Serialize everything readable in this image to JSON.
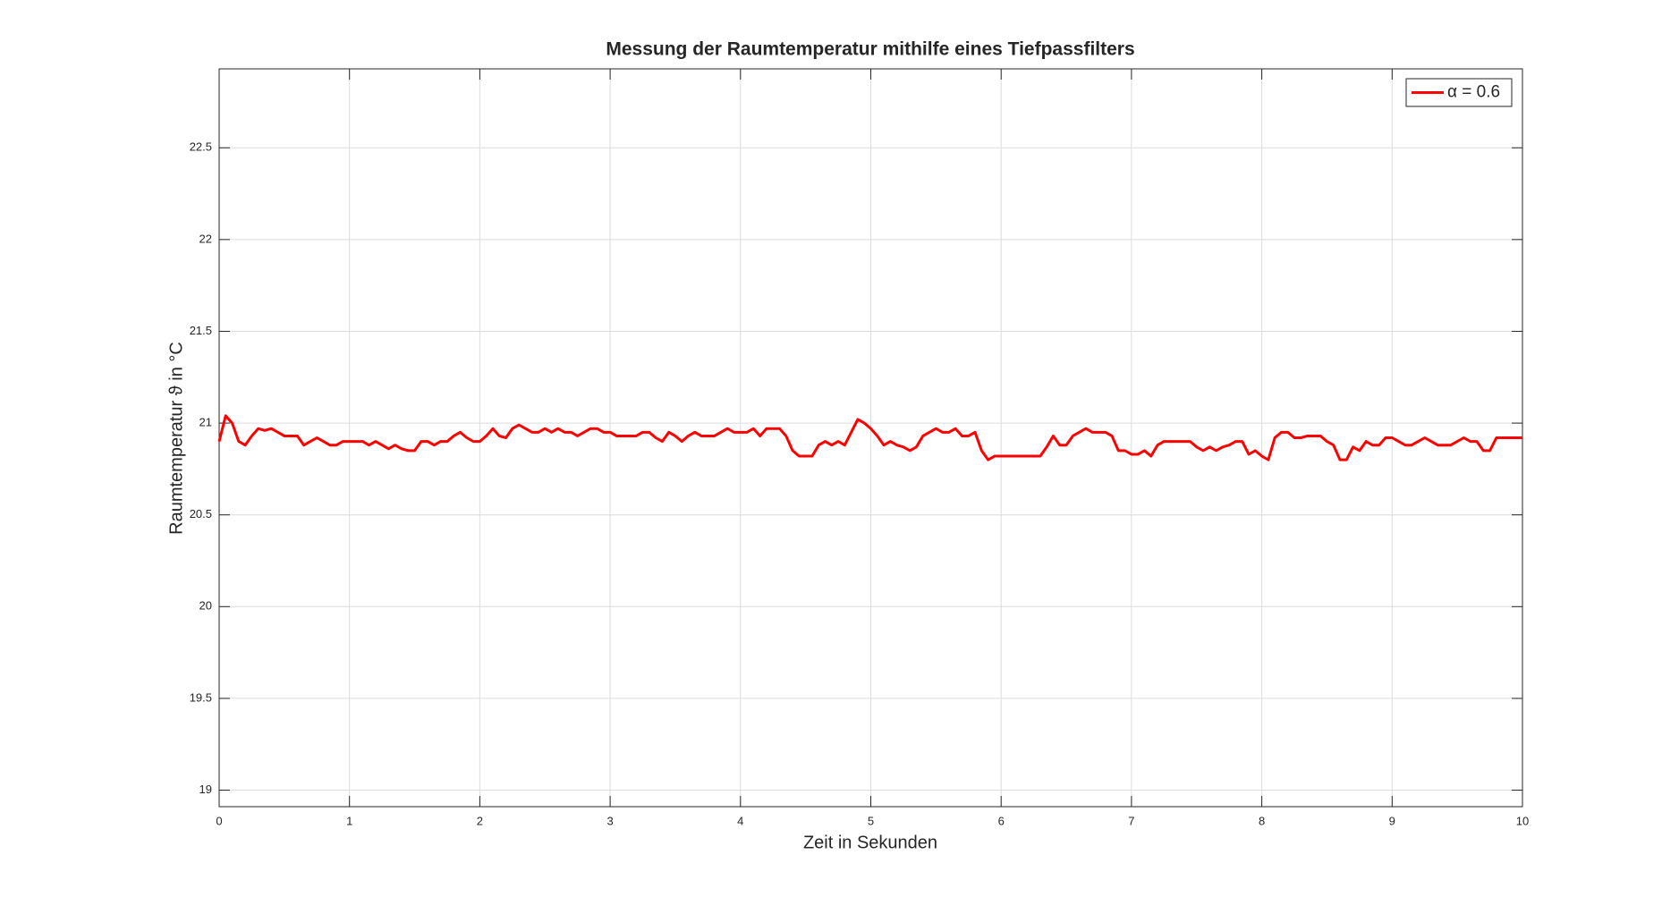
{
  "chart_data": {
    "type": "line",
    "title": "Messung der Raumtemperatur mithilfe eines Tiefpassfilters",
    "x_label": "Zeit in Sekunden",
    "y_label": "Raumtemperatur ϑ in °C",
    "xlim": [
      0,
      10
    ],
    "ylim": [
      18.91,
      22.93
    ],
    "xticks": [
      0,
      1,
      2,
      3,
      4,
      5,
      6,
      7,
      8,
      9,
      10
    ],
    "yticks": [
      19,
      19.5,
      20,
      20.5,
      21,
      21.5,
      22,
      22.5
    ],
    "grid": true,
    "legend": "northeast",
    "x": [
      0,
      0.05,
      0.1,
      0.15,
      0.2,
      0.25,
      0.3,
      0.35,
      0.4,
      0.45,
      0.5,
      0.55,
      0.6,
      0.65,
      0.7,
      0.75,
      0.8,
      0.85,
      0.9,
      0.95,
      1,
      1.05,
      1.1,
      1.15,
      1.2,
      1.25,
      1.3,
      1.35,
      1.4,
      1.45,
      1.5,
      1.55,
      1.6,
      1.65,
      1.7,
      1.75,
      1.8,
      1.85,
      1.9,
      1.95,
      2,
      2.05,
      2.1,
      2.15,
      2.2,
      2.25,
      2.3,
      2.35,
      2.4,
      2.45,
      2.5,
      2.55,
      2.6,
      2.65,
      2.7,
      2.75,
      2.8,
      2.85,
      2.9,
      2.95,
      3,
      3.05,
      3.1,
      3.15,
      3.2,
      3.25,
      3.3,
      3.35,
      3.4,
      3.45,
      3.5,
      3.55,
      3.6,
      3.65,
      3.7,
      3.75,
      3.8,
      3.85,
      3.9,
      3.95,
      4,
      4.05,
      4.1,
      4.15,
      4.2,
      4.25,
      4.3,
      4.35,
      4.4,
      4.45,
      4.5,
      4.55,
      4.6,
      4.65,
      4.7,
      4.75,
      4.8,
      4.85,
      4.9,
      4.95,
      5,
      5.05,
      5.1,
      5.15,
      5.2,
      5.25,
      5.3,
      5.35,
      5.4,
      5.45,
      5.5,
      5.55,
      5.6,
      5.65,
      5.7,
      5.75,
      5.8,
      5.85,
      5.9,
      5.95,
      6,
      6.05,
      6.1,
      6.15,
      6.2,
      6.25,
      6.3,
      6.35,
      6.4,
      6.45,
      6.5,
      6.55,
      6.6,
      6.65,
      6.7,
      6.75,
      6.8,
      6.85,
      6.9,
      6.95,
      7,
      7.05,
      7.1,
      7.15,
      7.2,
      7.25,
      7.3,
      7.35,
      7.4,
      7.45,
      7.5,
      7.55,
      7.6,
      7.65,
      7.7,
      7.75,
      7.8,
      7.85,
      7.9,
      7.95,
      8,
      8.05,
      8.1,
      8.15,
      8.2,
      8.25,
      8.3,
      8.35,
      8.4,
      8.45,
      8.5,
      8.55,
      8.6,
      8.65,
      8.7,
      8.75,
      8.8,
      8.85,
      8.9,
      8.95,
      9,
      9.05,
      9.1,
      9.15,
      9.2,
      9.25,
      9.3,
      9.35,
      9.4,
      9.45,
      9.5,
      9.55,
      9.6,
      9.65,
      9.7,
      9.75,
      9.8,
      9.85,
      9.9,
      9.95,
      10
    ],
    "series": [
      {
        "name": "α = 0.6",
        "color": "#ff0000",
        "values": [
          20.9,
          21.04,
          21.0,
          20.9,
          20.88,
          20.93,
          20.97,
          20.96,
          20.97,
          20.95,
          20.93,
          20.93,
          20.93,
          20.88,
          20.9,
          20.92,
          20.9,
          20.88,
          20.88,
          20.9,
          20.9,
          20.9,
          20.9,
          20.88,
          20.9,
          20.88,
          20.86,
          20.88,
          20.86,
          20.85,
          20.85,
          20.9,
          20.9,
          20.88,
          20.9,
          20.9,
          20.93,
          20.95,
          20.92,
          20.9,
          20.9,
          20.93,
          20.97,
          20.93,
          20.92,
          20.97,
          20.99,
          20.97,
          20.95,
          20.95,
          20.97,
          20.95,
          20.97,
          20.95,
          20.95,
          20.93,
          20.95,
          20.97,
          20.97,
          20.95,
          20.95,
          20.93,
          20.93,
          20.93,
          20.93,
          20.95,
          20.95,
          20.92,
          20.9,
          20.95,
          20.93,
          20.9,
          20.93,
          20.95,
          20.93,
          20.93,
          20.93,
          20.95,
          20.97,
          20.95,
          20.95,
          20.95,
          20.97,
          20.93,
          20.97,
          20.97,
          20.97,
          20.93,
          20.85,
          20.82,
          20.82,
          20.82,
          20.88,
          20.9,
          20.88,
          20.9,
          20.88,
          20.95,
          21.02,
          21.0,
          20.97,
          20.93,
          20.88,
          20.9,
          20.88,
          20.87,
          20.85,
          20.87,
          20.93,
          20.95,
          20.97,
          20.95,
          20.95,
          20.97,
          20.93,
          20.93,
          20.95,
          20.85,
          20.8,
          20.82,
          20.82,
          20.82,
          20.82,
          20.82,
          20.82,
          20.82,
          20.82,
          20.87,
          20.93,
          20.88,
          20.88,
          20.93,
          20.95,
          20.97,
          20.95,
          20.95,
          20.95,
          20.93,
          20.85,
          20.85,
          20.83,
          20.83,
          20.85,
          20.82,
          20.88,
          20.9,
          20.9,
          20.9,
          20.9,
          20.9,
          20.87,
          20.85,
          20.87,
          20.85,
          20.87,
          20.88,
          20.9,
          20.9,
          20.83,
          20.85,
          20.82,
          20.8,
          20.92,
          20.95,
          20.95,
          20.92,
          20.92,
          20.93,
          20.93,
          20.93,
          20.9,
          20.88,
          20.8,
          20.8,
          20.87,
          20.85,
          20.9,
          20.88,
          20.88,
          20.92,
          20.92,
          20.9,
          20.88,
          20.88,
          20.9,
          20.92,
          20.9,
          20.88,
          20.88,
          20.88,
          20.9,
          20.92,
          20.9,
          20.9,
          20.85,
          20.85,
          20.92,
          20.92,
          20.92,
          20.92,
          20.92
        ]
      }
    ]
  }
}
